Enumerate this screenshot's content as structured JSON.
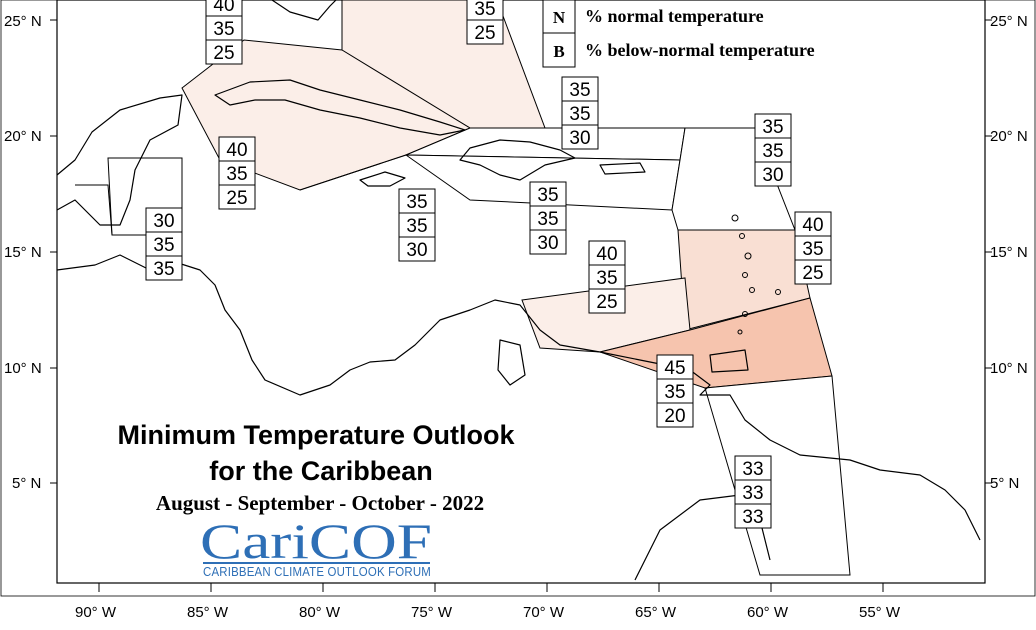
{
  "title": {
    "line1": "Minimum Temperature Outlook",
    "line2": "for the Caribbean",
    "period": "August - September - October - 2022"
  },
  "logo": {
    "main": "CariCOF",
    "sub": "CARIBBEAN CLIMATE OUTLOOK FORUM"
  },
  "legend": {
    "items": [
      {
        "letter": "N",
        "label": "% normal temperature"
      },
      {
        "letter": "B",
        "label": "% below-normal temperature"
      }
    ]
  },
  "axes": {
    "latitude_labels": [
      "25° N",
      "20° N",
      "15° N",
      "10° N",
      "5° N"
    ],
    "longitude_labels": [
      "90° W",
      "85° W",
      "80° W",
      "75° W",
      "70° W",
      "65° W",
      "60° W",
      "55° W"
    ]
  },
  "zone_colors": {
    "light": "#fbeee8",
    "medium": "#f9dfd3",
    "strong": "#f6c4ae",
    "none": "#ffffff"
  },
  "forecast_boxes": [
    {
      "id": "bahamas-west",
      "values": [
        "40",
        "35",
        "25"
      ]
    },
    {
      "id": "bahamas-east",
      "values": [
        "35",
        "25"
      ]
    },
    {
      "id": "turks-caicos",
      "values": [
        "35",
        "35",
        "30"
      ]
    },
    {
      "id": "cuba",
      "values": [
        "40",
        "35",
        "25"
      ]
    },
    {
      "id": "belize",
      "values": [
        "30",
        "35",
        "35"
      ]
    },
    {
      "id": "jamaica",
      "values": [
        "35",
        "35",
        "30"
      ]
    },
    {
      "id": "hispaniola",
      "values": [
        "35",
        "35",
        "30"
      ]
    },
    {
      "id": "northern-leewards",
      "values": [
        "35",
        "35",
        "30"
      ]
    },
    {
      "id": "windwards",
      "values": [
        "40",
        "35",
        "25"
      ]
    },
    {
      "id": "abc-islands",
      "values": [
        "40",
        "35",
        "25"
      ]
    },
    {
      "id": "trinidad",
      "values": [
        "45",
        "35",
        "20"
      ]
    },
    {
      "id": "guianas",
      "values": [
        "33",
        "33",
        "33"
      ]
    }
  ]
}
